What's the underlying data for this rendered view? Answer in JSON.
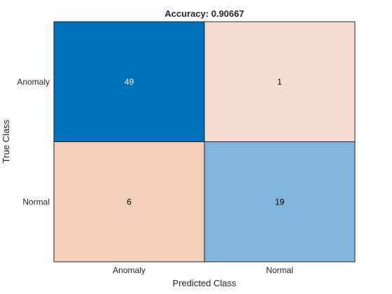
{
  "chart_data": {
    "type": "heatmap",
    "title": "Accuracy: 0.90667",
    "xlabel": "Predicted Class",
    "ylabel": "True Class",
    "x_categories": [
      "Anomaly",
      "Normal"
    ],
    "y_categories": [
      "Anomaly",
      "Normal"
    ],
    "values": [
      [
        49,
        1
      ],
      [
        6,
        19
      ]
    ],
    "cell_colors": [
      [
        "#0072bd",
        "#f6dbd0"
      ],
      [
        "#f3cfbd",
        "#80b6dd"
      ]
    ],
    "cell_text_colors": [
      [
        "#ffffff",
        "#000000"
      ],
      [
        "#000000",
        "#000000"
      ]
    ],
    "grid": true
  }
}
